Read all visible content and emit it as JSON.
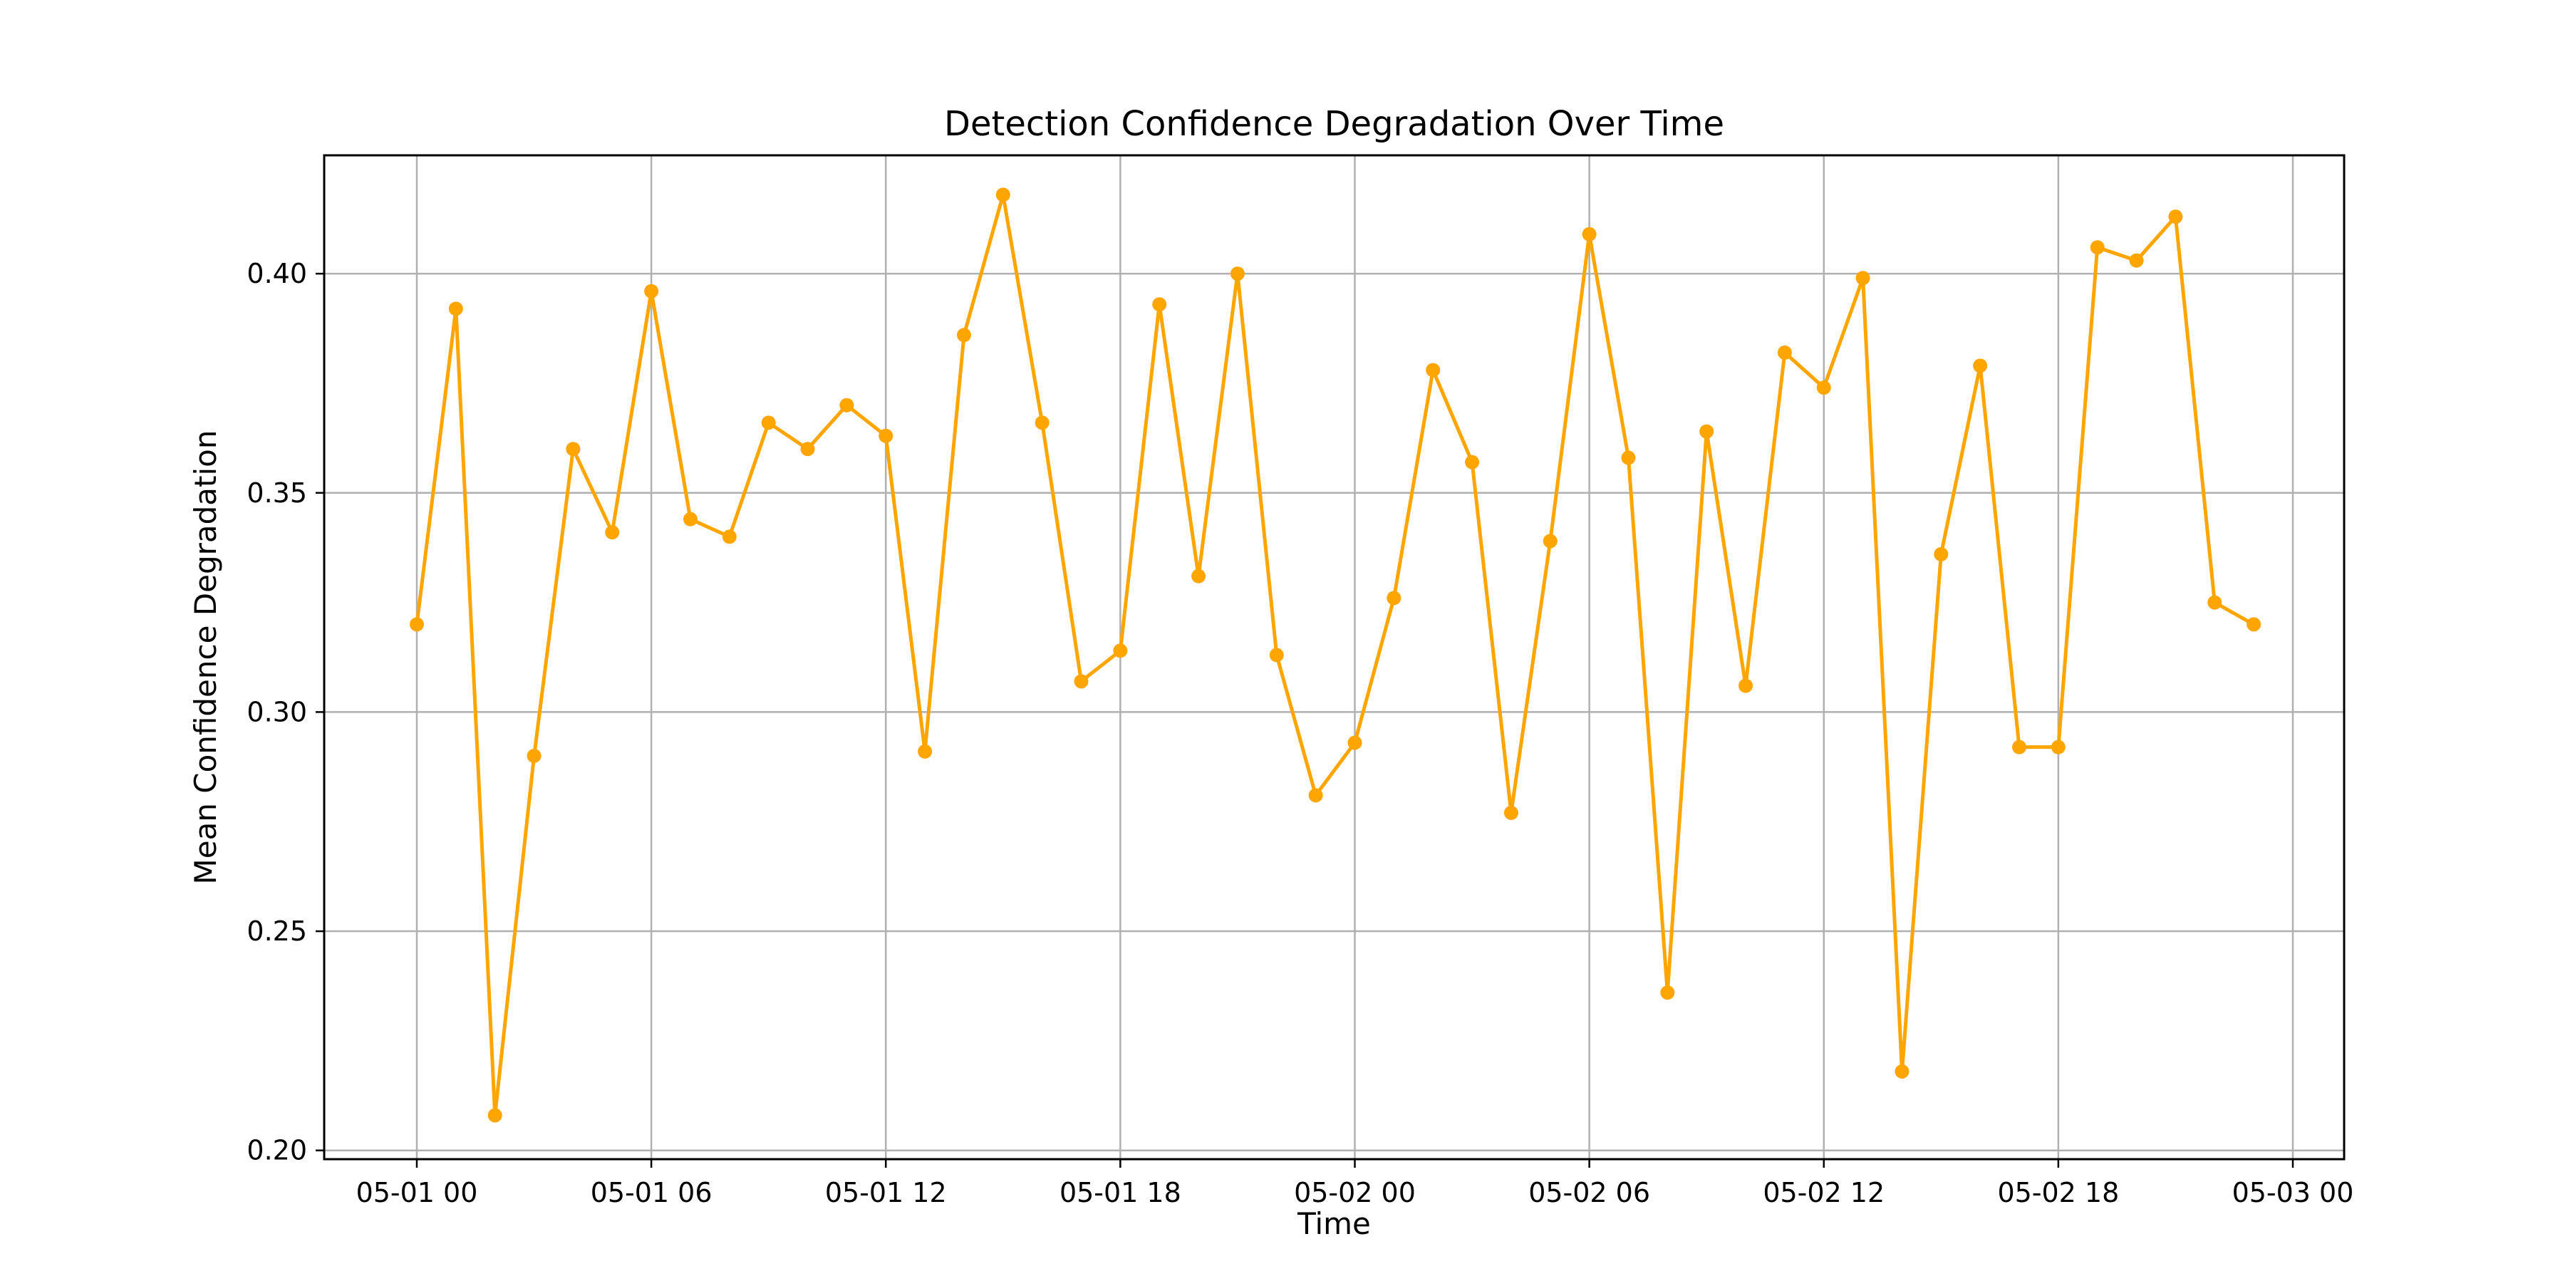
{
  "chart_data": {
    "type": "line",
    "title": "Detection Confidence Degradation Over Time",
    "xlabel": "Time",
    "ylabel": "Mean Confidence Degradation",
    "x_ticks": [
      "05-01 00",
      "05-01 06",
      "05-01 12",
      "05-01 18",
      "05-02 00",
      "05-02 06",
      "05-02 12",
      "05-02 18",
      "05-03 00"
    ],
    "y_ticks": [
      "0.20",
      "0.25",
      "0.30",
      "0.35",
      "0.40"
    ],
    "ylim": [
      0.198,
      0.427
    ],
    "xlim": [
      "2023-05-01T00:00",
      "2023-05-03T00:00"
    ],
    "grid": true,
    "color": "#FFA500",
    "marker": "circle",
    "series": [
      {
        "x": [
          "2023-05-01T00:00",
          "2023-05-01T01:00",
          "2023-05-01T02:00",
          "2023-05-01T03:00",
          "2023-05-01T04:00",
          "2023-05-01T05:00",
          "2023-05-01T06:00",
          "2023-05-01T07:00",
          "2023-05-01T08:00",
          "2023-05-01T09:00",
          "2023-05-01T10:00",
          "2023-05-01T11:00",
          "2023-05-01T12:00",
          "2023-05-01T13:00",
          "2023-05-01T14:00",
          "2023-05-01T15:00",
          "2023-05-01T16:00",
          "2023-05-01T17:00",
          "2023-05-01T18:00",
          "2023-05-01T19:00",
          "2023-05-01T20:00",
          "2023-05-01T21:00",
          "2023-05-01T22:00",
          "2023-05-01T23:00",
          "2023-05-02T00:00",
          "2023-05-02T01:00",
          "2023-05-02T02:00",
          "2023-05-02T03:00",
          "2023-05-02T04:00",
          "2023-05-02T05:00",
          "2023-05-02T06:00",
          "2023-05-02T07:00",
          "2023-05-02T08:00",
          "2023-05-02T09:00",
          "2023-05-02T10:00",
          "2023-05-02T11:00",
          "2023-05-02T12:00",
          "2023-05-02T13:00",
          "2023-05-02T14:00",
          "2023-05-02T15:00",
          "2023-05-02T16:00",
          "2023-05-02T17:00",
          "2023-05-02T18:00",
          "2023-05-02T19:00",
          "2023-05-02T20:00",
          "2023-05-02T21:00",
          "2023-05-02T22:00",
          "2023-05-02T23:00"
        ],
        "values": [
          0.32,
          0.392,
          0.208,
          0.29,
          0.36,
          0.341,
          0.396,
          0.344,
          0.34,
          0.366,
          0.36,
          0.37,
          0.363,
          0.291,
          0.386,
          0.418,
          0.366,
          0.307,
          0.314,
          0.393,
          0.331,
          0.4,
          0.313,
          0.281,
          0.293,
          0.326,
          0.378,
          0.357,
          0.277,
          0.339,
          0.409,
          0.358,
          0.236,
          0.364,
          0.306,
          0.382,
          0.374,
          0.399,
          0.218,
          0.336,
          0.379,
          0.292,
          0.292,
          0.406,
          0.403,
          0.413,
          0.325,
          0.32
        ]
      }
    ]
  }
}
